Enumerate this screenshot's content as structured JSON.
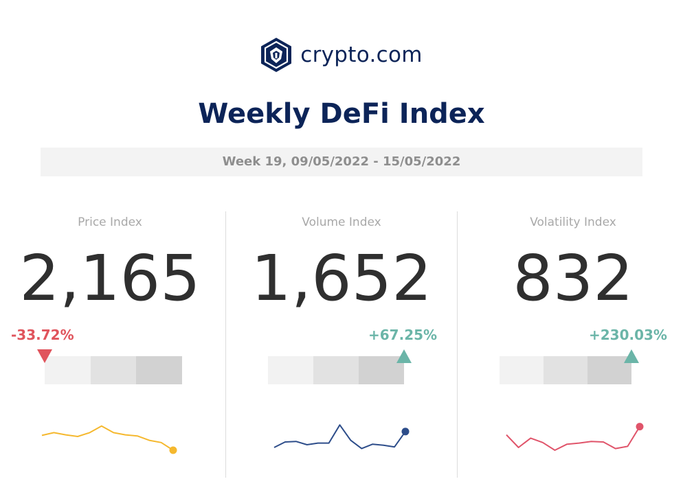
{
  "brand": {
    "name": "crypto.com",
    "logo_icon": "lion-shield-icon",
    "color": "#0c2458"
  },
  "header": {
    "title": "Weekly DeFi Index",
    "week": "Week 19, 09/05/2022 - 15/05/2022"
  },
  "panels": [
    {
      "label": "Price Index",
      "value": "2,165",
      "change": "-33.72%",
      "direction": "down",
      "color": "#e0545c",
      "gauge_level_pct": 0,
      "spark_color": "#f5b82e",
      "sparkline": [
        57,
        62,
        58,
        55,
        62,
        74,
        62,
        58,
        56,
        48,
        44,
        30
      ]
    },
    {
      "label": "Volume Index",
      "value": "1,652",
      "change": "+67.25%",
      "direction": "up",
      "color": "#6bb5a8",
      "gauge_level_pct": 100,
      "spark_color": "#2d4d8a",
      "sparkline": [
        35,
        45,
        46,
        40,
        43,
        43,
        76,
        48,
        33,
        41,
        39,
        36,
        64
      ]
    },
    {
      "label": "Volatility Index",
      "value": "832",
      "change": "+230.03%",
      "direction": "up",
      "color": "#6bb5a8",
      "gauge_level_pct": 98,
      "spark_color": "#e0546a",
      "sparkline": [
        58,
        35,
        52,
        44,
        30,
        41,
        43,
        46,
        45,
        33,
        37,
        73
      ]
    }
  ]
}
